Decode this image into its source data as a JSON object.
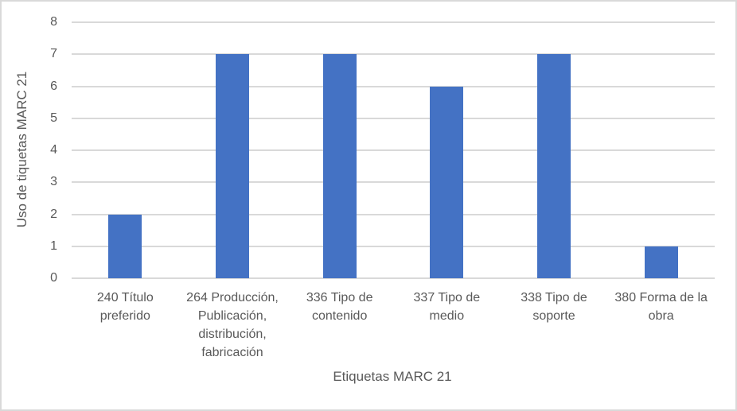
{
  "chart_data": {
    "type": "bar",
    "title": "",
    "xlabel": "Etiquetas MARC 21",
    "ylabel": "Uso de tiquetas MARC 21",
    "ylim": [
      0,
      8
    ],
    "yticks": [
      "0",
      "1",
      "2",
      "3",
      "4",
      "5",
      "6",
      "7",
      "8"
    ],
    "grid": true,
    "legend": "none",
    "categories": [
      "240 Título preferido",
      "264 Producción, Publicación, distribución, fabricación",
      "336 Tipo de contenido",
      "337 Tipo de medio",
      "338 Tipo de soporte",
      "380 Forma de la obra"
    ],
    "category_lines": [
      [
        "240 Título",
        "preferido"
      ],
      [
        "264 Producción,",
        "Publicación,",
        "distribución,",
        "fabricación"
      ],
      [
        "336 Tipo de",
        "contenido"
      ],
      [
        "337 Tipo de",
        "medio"
      ],
      [
        "338 Tipo de",
        "soporte"
      ],
      [
        "380 Forma de la",
        "obra"
      ]
    ],
    "values": [
      2,
      7,
      7,
      6,
      7,
      1
    ],
    "bar_color": "#4472c4"
  }
}
